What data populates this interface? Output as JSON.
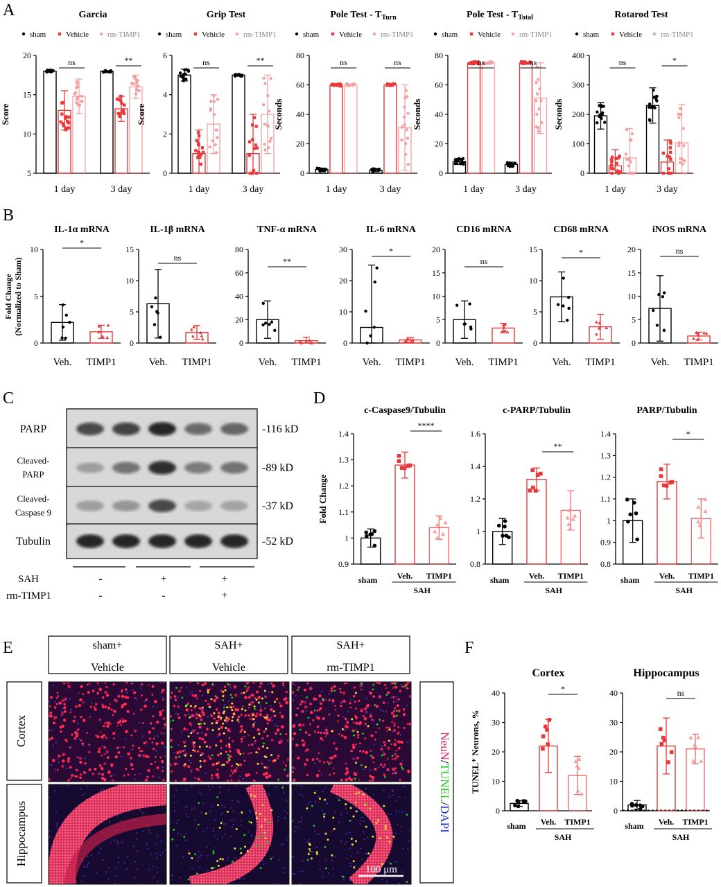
{
  "colors": {
    "black": "#000000",
    "red": "#e8393a",
    "pink": "#f2a0a0",
    "panel_border": "#000000",
    "merge_red": "#e8256a",
    "tunel_green": "#22cc22",
    "dapi_blue": "#1f2fd8"
  },
  "panel_letters": {
    "a": "A",
    "b": "B",
    "c": "C",
    "d": "D",
    "e": "E",
    "f": "F"
  },
  "panel_a": {
    "legend": [
      "sham",
      "Vehicle",
      "rm-TIMP1"
    ],
    "x_categories": [
      "1 day",
      "3 day"
    ]
  },
  "panel_b": {
    "ylabel_line1": "Fold Change",
    "ylabel_line2": "(Normalized to Sham)",
    "x_categories": [
      "Veh.",
      "TIMP1"
    ]
  },
  "panel_c": {
    "rows": [
      {
        "label": "PARP",
        "size": "-116 kD"
      },
      {
        "label": "Cleaved-\nPARP",
        "size": "-89 kD"
      },
      {
        "label": "Cleaved-\nCaspase 9",
        "size": "-37 kD"
      },
      {
        "label": "Tubulin",
        "size": "-52 kD"
      }
    ],
    "sah_label": "SAH",
    "timp_label": "rm-TIMP1",
    "sah_signs": [
      "-",
      "+",
      "+"
    ],
    "timp_signs": [
      "-",
      "-",
      "+"
    ]
  },
  "panel_d": {
    "ylabel": "Fold Change",
    "x_categories": [
      "sham",
      "Veh.",
      "TIMP1"
    ],
    "group_label": "SAH"
  },
  "panel_e": {
    "col_headers": [
      [
        "sham+",
        "Vehicle"
      ],
      [
        "SAH+",
        "Vehicle"
      ],
      [
        "SAH+",
        "rm-TIMP1"
      ]
    ],
    "row_labels": [
      "Cortex",
      "Hippocampus"
    ],
    "stain_labels": [
      "NeuN",
      "/",
      "TUNEL",
      "/",
      "DAPI"
    ],
    "scale_bar": "100 μm"
  },
  "panel_f": {
    "ylabel": "TUNEL⁺ Neurons, %",
    "x_categories": [
      "sham",
      "Veh.",
      "TIMP1"
    ],
    "group_label": "SAH"
  },
  "chart_data": [
    {
      "panel": "A",
      "type": "bar",
      "title": "Garcia",
      "ylabel": "Score",
      "ylim": [
        5,
        20
      ],
      "yticks": [
        5,
        10,
        15,
        20
      ],
      "categories": [
        "1 day",
        "3 day"
      ],
      "series": [
        {
          "name": "sham",
          "values": [
            18,
            18
          ],
          "err": [
            0,
            0
          ]
        },
        {
          "name": "Vehicle",
          "values": [
            13,
            13.2
          ],
          "err": [
            2.5,
            1.6
          ]
        },
        {
          "name": "rm-TIMP1",
          "values": [
            14.8,
            16
          ],
          "err": [
            2.2,
            1.5
          ]
        }
      ],
      "significance": [
        "ns",
        "**"
      ]
    },
    {
      "panel": "A",
      "type": "bar",
      "title": "Grip Test",
      "ylabel": "Score",
      "ylim": [
        0,
        6
      ],
      "yticks": [
        0,
        2,
        4,
        6
      ],
      "categories": [
        "1 day",
        "3 day"
      ],
      "series": [
        {
          "name": "sham",
          "values": [
            5,
            5
          ],
          "err": [
            0.3,
            0
          ]
        },
        {
          "name": "Vehicle",
          "values": [
            1,
            1
          ],
          "err": [
            1.2,
            2
          ]
        },
        {
          "name": "rm-TIMP1",
          "values": [
            2.5,
            3
          ],
          "err": [
            1.5,
            2
          ]
        }
      ],
      "significance": [
        "ns",
        "**"
      ]
    },
    {
      "panel": "A",
      "type": "bar",
      "title": "Pole Test - T",
      "title_sub": "Turn",
      "ylabel": "Seconds",
      "ylim": [
        0,
        80
      ],
      "yticks": [
        0,
        20,
        40,
        60,
        80
      ],
      "categories": [
        "1 day",
        "3 day"
      ],
      "series": [
        {
          "name": "sham",
          "values": [
            2.5,
            2
          ],
          "err": [
            1,
            1
          ]
        },
        {
          "name": "Vehicle",
          "values": [
            60,
            60
          ],
          "err": [
            0,
            0
          ]
        },
        {
          "name": "rm-TIMP1",
          "values": [
            60,
            31
          ],
          "err": [
            0,
            29
          ]
        }
      ],
      "significance": [
        "ns",
        "ns"
      ]
    },
    {
      "panel": "A",
      "type": "bar",
      "title": "Pole Test - T",
      "title_sub": "Total",
      "ylabel": "Seconds",
      "ylim": [
        0,
        80
      ],
      "yticks": [
        0,
        20,
        40,
        60,
        80
      ],
      "categories": [
        "1 day",
        "3 day"
      ],
      "series": [
        {
          "name": "sham",
          "values": [
            8,
            6
          ],
          "err": [
            2,
            1.5
          ]
        },
        {
          "name": "Vehicle",
          "values": [
            75,
            75
          ],
          "err": [
            0,
            0
          ]
        },
        {
          "name": "rm-TIMP1",
          "values": [
            75,
            51
          ],
          "err": [
            0,
            24
          ]
        }
      ],
      "significance": [
        "ns",
        "ns"
      ]
    },
    {
      "panel": "A",
      "type": "bar",
      "title": "Rotarod Test",
      "ylabel": "Seconds",
      "ylim": [
        0,
        400
      ],
      "yticks": [
        0,
        100,
        200,
        300,
        400
      ],
      "categories": [
        "1 day",
        "3 day"
      ],
      "series": [
        {
          "name": "sham",
          "values": [
            195,
            230
          ],
          "err": [
            45,
            60
          ]
        },
        {
          "name": "Vehicle",
          "values": [
            25,
            38
          ],
          "err": [
            55,
            75
          ]
        },
        {
          "name": "rm-TIMP1",
          "values": [
            52,
            103
          ],
          "err": [
            100,
            130
          ]
        }
      ],
      "significance": [
        "ns",
        "*"
      ]
    },
    {
      "panel": "B",
      "type": "bar",
      "title": "IL-1α mRNA",
      "ylim": [
        0,
        10
      ],
      "yticks": [
        0,
        5,
        10
      ],
      "categories": [
        "Veh.",
        "TIMP1"
      ],
      "values": [
        2.2,
        1.2
      ],
      "err": [
        1.9,
        0.7
      ],
      "significance": "*"
    },
    {
      "panel": "B",
      "type": "bar",
      "title": "IL-1β mRNA",
      "ylim": [
        0,
        15
      ],
      "yticks": [
        0,
        5,
        10,
        15
      ],
      "categories": [
        "Veh.",
        "TIMP1"
      ],
      "values": [
        6.3,
        1.7
      ],
      "err": [
        5.5,
        1.1
      ],
      "significance": "ns"
    },
    {
      "panel": "B",
      "type": "bar",
      "title": "TNF-α mRNA",
      "ylim": [
        0,
        80
      ],
      "yticks": [
        0,
        20,
        40,
        60,
        80
      ],
      "categories": [
        "Veh.",
        "TIMP1"
      ],
      "values": [
        20,
        2
      ],
      "err": [
        16,
        3
      ],
      "significance": "**"
    },
    {
      "panel": "B",
      "type": "bar",
      "title": "IL-6 mRNA",
      "ylim": [
        0,
        30
      ],
      "yticks": [
        0,
        10,
        20,
        30
      ],
      "categories": [
        "Veh.",
        "TIMP1"
      ],
      "values": [
        5,
        1
      ],
      "err": [
        20,
        0.8
      ],
      "significance": "*"
    },
    {
      "panel": "B",
      "type": "bar",
      "title": "CD16 mRNA",
      "ylim": [
        0,
        20
      ],
      "yticks": [
        0,
        5,
        10,
        15,
        20
      ],
      "categories": [
        "Veh.",
        "TIMP1"
      ],
      "values": [
        5,
        3.2
      ],
      "err": [
        4,
        1
      ],
      "significance": "ns"
    },
    {
      "panel": "B",
      "type": "bar",
      "title": "CD68 mRNA",
      "ylim": [
        0,
        15
      ],
      "yticks": [
        0,
        5,
        10,
        15
      ],
      "categories": [
        "Veh.",
        "TIMP1"
      ],
      "values": [
        7.4,
        2.6
      ],
      "err": [
        4,
        2
      ],
      "significance": "*"
    },
    {
      "panel": "B",
      "type": "bar",
      "title": "iNOS mRNA",
      "ylim": [
        0,
        20
      ],
      "yticks": [
        0,
        5,
        10,
        15,
        20
      ],
      "categories": [
        "Veh.",
        "TIMP1"
      ],
      "values": [
        7.4,
        1.5
      ],
      "err": [
        7,
        0.8
      ],
      "significance": "ns"
    },
    {
      "panel": "D",
      "type": "bar",
      "title": "c-Caspase9/Tubulin",
      "ylim": [
        0.9,
        1.4
      ],
      "yticks": [
        0.9,
        1.0,
        1.1,
        1.2,
        1.3,
        1.4
      ],
      "categories": [
        "sham",
        "Veh.",
        "TIMP1"
      ],
      "values": [
        1.0,
        1.28,
        1.04
      ],
      "err": [
        0.035,
        0.05,
        0.045
      ],
      "significance": "****"
    },
    {
      "panel": "D",
      "type": "bar",
      "title": "c-PARP/Tubulin",
      "ylim": [
        0.8,
        1.6
      ],
      "yticks": [
        0.8,
        1.0,
        1.2,
        1.4,
        1.6
      ],
      "categories": [
        "sham",
        "Veh.",
        "TIMP1"
      ],
      "values": [
        1.0,
        1.32,
        1.13
      ],
      "err": [
        0.08,
        0.07,
        0.12
      ],
      "significance": "**"
    },
    {
      "panel": "D",
      "type": "bar",
      "title": "PARP/Tubulin",
      "ylim": [
        0.8,
        1.4
      ],
      "yticks": [
        0.8,
        0.9,
        1.0,
        1.1,
        1.2,
        1.3,
        1.4
      ],
      "categories": [
        "sham",
        "Veh.",
        "TIMP1"
      ],
      "values": [
        1.0,
        1.18,
        1.01
      ],
      "err": [
        0.1,
        0.08,
        0.09
      ],
      "significance": "*"
    },
    {
      "panel": "F",
      "type": "bar",
      "title": "Cortex",
      "ylim": [
        0,
        40
      ],
      "yticks": [
        0,
        10,
        20,
        30,
        40
      ],
      "categories": [
        "sham",
        "Veh.",
        "TIMP1"
      ],
      "values": [
        2.5,
        22,
        12
      ],
      "err": [
        1,
        9,
        6.5
      ],
      "significance": "*"
    },
    {
      "panel": "F",
      "type": "bar",
      "title": "Hippocampus",
      "ylim": [
        0,
        40
      ],
      "yticks": [
        0,
        10,
        20,
        30,
        40
      ],
      "categories": [
        "sham",
        "Veh.",
        "TIMP1"
      ],
      "values": [
        2,
        22,
        21
      ],
      "err": [
        1.5,
        9.5,
        5
      ],
      "significance": "ns"
    }
  ]
}
